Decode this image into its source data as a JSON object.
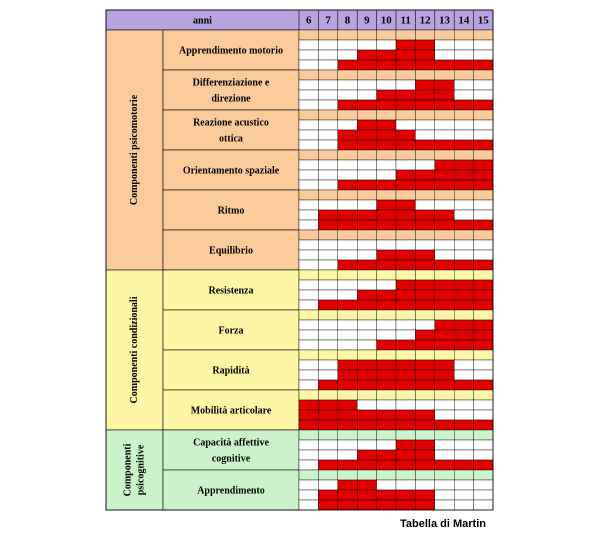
{
  "chart_data": {
    "type": "table",
    "header_label": "anni",
    "ages": [
      "6",
      "7",
      "8",
      "9",
      "10",
      "11",
      "12",
      "13",
      "14",
      "15"
    ],
    "colors": {
      "header_bg": "#b7a3e0",
      "psicomotorie_bg": "#fccb9c",
      "condizionali_bg": "#fdf6a4",
      "psicognitive_bg": "#ccf2cc",
      "filled": "#e00000",
      "empty": "#ffffff"
    },
    "groups": [
      {
        "label": "Componenti psicomotorie",
        "theme": "psicomotorie",
        "items": [
          {
            "label": "Apprendimento motorio",
            "rows": [
              [
                0,
                0,
                0,
                0,
                0,
                1,
                1,
                0,
                0,
                0
              ],
              [
                0,
                0,
                0,
                1,
                1,
                1,
                1,
                0,
                0,
                0
              ],
              [
                0,
                0,
                1,
                1,
                1,
                1,
                1,
                1,
                1,
                1
              ]
            ]
          },
          {
            "label": "Differenziazione e direzione",
            "rows": [
              [
                0,
                0,
                0,
                0,
                0,
                0,
                1,
                1,
                0,
                0
              ],
              [
                0,
                0,
                0,
                0,
                1,
                1,
                1,
                1,
                0,
                0
              ],
              [
                0,
                0,
                1,
                1,
                1,
                1,
                1,
                1,
                1,
                1
              ]
            ]
          },
          {
            "label": "Reazione acustico ottica",
            "rows": [
              [
                0,
                0,
                0,
                1,
                1,
                0,
                0,
                0,
                0,
                0
              ],
              [
                0,
                0,
                1,
                1,
                1,
                1,
                0,
                0,
                0,
                0
              ],
              [
                0,
                0,
                1,
                1,
                1,
                1,
                1,
                1,
                1,
                1
              ]
            ]
          },
          {
            "label": "Orientamento spaziale",
            "rows": [
              [
                0,
                0,
                0,
                0,
                0,
                0,
                0,
                1,
                1,
                1
              ],
              [
                0,
                0,
                0,
                0,
                0,
                1,
                1,
                1,
                1,
                1
              ],
              [
                0,
                0,
                1,
                1,
                1,
                1,
                1,
                1,
                1,
                1
              ]
            ]
          },
          {
            "label": "Ritmo",
            "rows": [
              [
                0,
                0,
                0,
                0,
                1,
                1,
                0,
                0,
                0,
                0
              ],
              [
                0,
                1,
                1,
                1,
                1,
                1,
                1,
                1,
                0,
                0
              ],
              [
                0,
                1,
                1,
                1,
                1,
                1,
                1,
                1,
                1,
                1
              ]
            ]
          },
          {
            "label": "Equilibrio",
            "rows": [
              [
                0,
                0,
                0,
                0,
                0,
                0,
                0,
                0,
                0,
                0
              ],
              [
                0,
                0,
                0,
                0,
                1,
                1,
                1,
                0,
                0,
                0
              ],
              [
                0,
                0,
                1,
                1,
                1,
                1,
                1,
                1,
                1,
                1
              ]
            ]
          }
        ]
      },
      {
        "label": "Componenti condizionali",
        "theme": "condizionali",
        "items": [
          {
            "label": "Resistenza",
            "rows": [
              [
                0,
                0,
                0,
                0,
                0,
                1,
                1,
                1,
                1,
                1
              ],
              [
                0,
                0,
                0,
                1,
                1,
                1,
                1,
                1,
                1,
                1
              ],
              [
                0,
                1,
                1,
                1,
                1,
                1,
                1,
                1,
                1,
                1
              ]
            ]
          },
          {
            "label": "Forza",
            "rows": [
              [
                0,
                0,
                0,
                0,
                0,
                0,
                0,
                1,
                1,
                1
              ],
              [
                0,
                0,
                0,
                0,
                0,
                0,
                1,
                1,
                1,
                1
              ],
              [
                0,
                0,
                0,
                0,
                1,
                1,
                1,
                1,
                1,
                1
              ]
            ]
          },
          {
            "label": "Rapidità",
            "rows": [
              [
                0,
                0,
                1,
                1,
                1,
                1,
                1,
                1,
                0,
                0
              ],
              [
                0,
                0,
                1,
                1,
                1,
                1,
                1,
                1,
                0,
                0
              ],
              [
                0,
                1,
                1,
                1,
                1,
                1,
                1,
                1,
                1,
                1
              ]
            ]
          },
          {
            "label": "Mobilità articolare",
            "rows": [
              [
                1,
                1,
                1,
                0,
                0,
                0,
                0,
                0,
                0,
                0
              ],
              [
                1,
                1,
                1,
                1,
                1,
                1,
                1,
                0,
                0,
                0
              ],
              [
                1,
                1,
                1,
                1,
                1,
                1,
                1,
                1,
                1,
                1
              ]
            ]
          }
        ]
      },
      {
        "label": "Componenti psicognitive",
        "theme": "psicognitive",
        "items": [
          {
            "label": "Capacità affettive cognitive",
            "rows": [
              [
                0,
                0,
                0,
                0,
                0,
                1,
                1,
                0,
                0,
                0
              ],
              [
                0,
                0,
                0,
                1,
                1,
                1,
                1,
                0,
                0,
                0
              ],
              [
                0,
                1,
                1,
                1,
                1,
                1,
                1,
                1,
                1,
                1
              ]
            ]
          },
          {
            "label": "Apprendimento",
            "rows": [
              [
                0,
                0,
                1,
                1,
                0,
                0,
                0,
                0,
                0,
                0
              ],
              [
                0,
                1,
                1,
                1,
                1,
                1,
                1,
                0,
                0,
                0
              ],
              [
                0,
                1,
                1,
                1,
                1,
                1,
                1,
                0,
                0,
                0
              ]
            ]
          }
        ]
      }
    ]
  },
  "credit": "Tabella di Martin"
}
